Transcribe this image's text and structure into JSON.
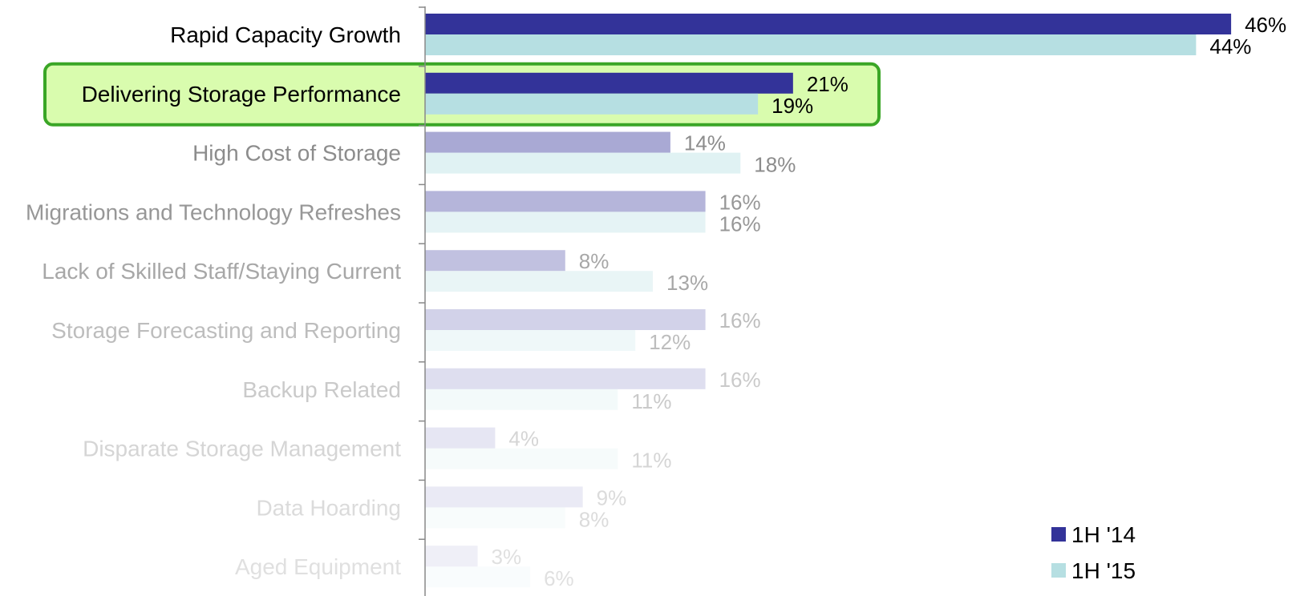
{
  "colors": {
    "series_1h14": "#333399",
    "series_1h15": "#b6dfe2",
    "highlight_fill": "#d9fcae",
    "highlight_stroke": "#3aa626",
    "axis": "#888888"
  },
  "chart_data": {
    "type": "bar",
    "orientation": "horizontal",
    "categories": [
      "Rapid Capacity Growth",
      "Delivering Storage Performance",
      "High Cost of Storage",
      "Migrations and Technology Refreshes",
      "Lack of Skilled Staff/Staying Current",
      "Storage Forecasting and Reporting",
      "Backup Related",
      "Disparate Storage Management",
      "Data Hoarding",
      "Aged Equipment"
    ],
    "series": [
      {
        "name": "1H '14",
        "values": [
          46,
          21,
          14,
          16,
          8,
          16,
          16,
          4,
          9,
          3
        ]
      },
      {
        "name": "1H '15",
        "values": [
          44,
          19,
          18,
          16,
          13,
          12,
          11,
          11,
          8,
          6
        ]
      }
    ],
    "value_labels": [
      [
        "46%",
        "21%",
        "14%",
        "16%",
        "8%",
        "16%",
        "16%",
        "4%",
        "9%",
        "3%"
      ],
      [
        "44%",
        "19%",
        "18%",
        "16%",
        "13%",
        "12%",
        "11%",
        "11%",
        "8%",
        "6%"
      ]
    ],
    "highlighted_category": "Delivering Storage Performance",
    "xlim": [
      0,
      50
    ],
    "legend": {
      "placement": "bottom-right",
      "entries": [
        "1H '14",
        "1H '15"
      ]
    },
    "grid": false
  }
}
